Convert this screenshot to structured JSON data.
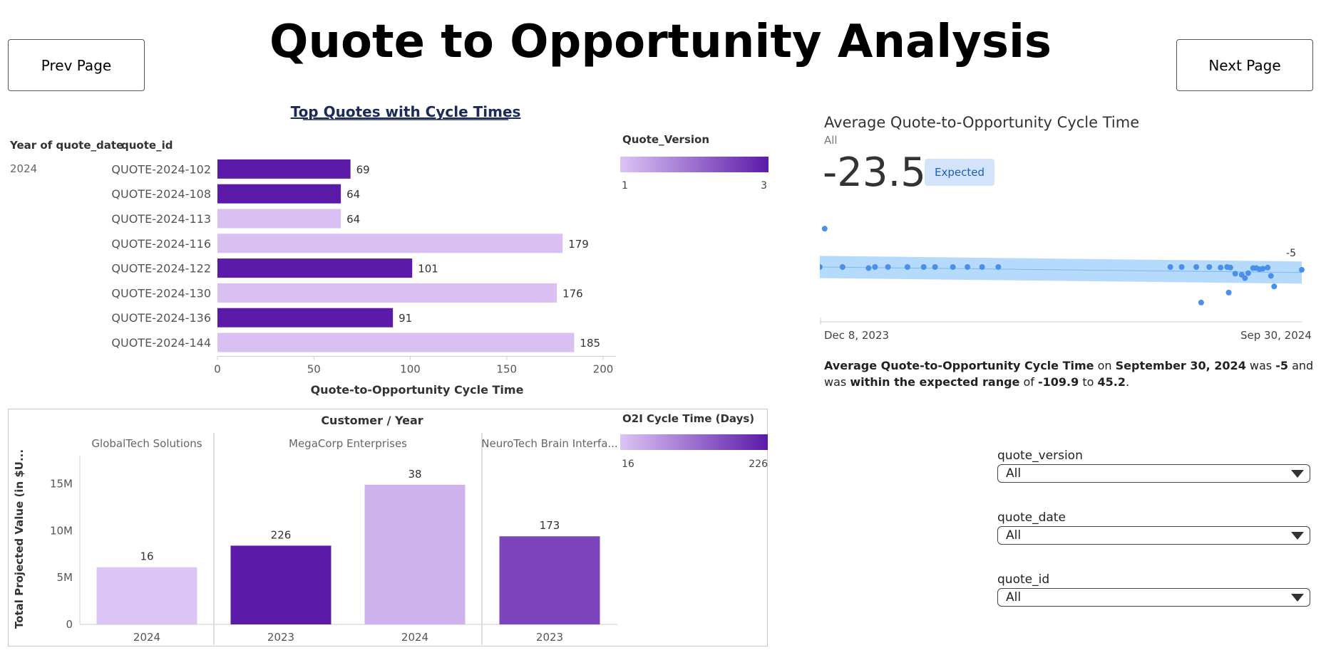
{
  "title": "Quote to Opportunity Analysis",
  "nav": {
    "prev_label": "Prev Page",
    "next_label": "Next Page"
  },
  "colors": {
    "dark_purple": "#5b1aa8",
    "mid_purple": "#7b45bb",
    "light_purple": "#d9bff2",
    "lavender": "#c7aae8",
    "kpi_blue": "#4a90e8",
    "band_blue": "#a9d4fb"
  },
  "top_quotes": {
    "title": "Top Quotes with Cycle Times",
    "col_year": "Year of quote_date",
    "col_id": "quote_id",
    "year_value": "2024",
    "legend_title": "Quote_Version",
    "legend_min": "1",
    "legend_max": "3"
  },
  "customer": {
    "title": "Customer / Year",
    "legend_title": "O2I Cycle Time (Days)",
    "legend_min": "16",
    "legend_max": "226"
  },
  "kpi": {
    "title": "Average Quote-to-Opportunity Cycle Time",
    "subtitle": "All",
    "value": "-23.5",
    "badge": "Expected",
    "last_label": "-5",
    "date_start": "Dec 8, 2023",
    "date_end": "Sep 30, 2024",
    "summary": {
      "measure": "Average Quote-to-Opportunity Cycle Time",
      "on": " on ",
      "date": "September 30, 2024",
      "was": " was ",
      "value": "-5",
      "and_was": " and was ",
      "range_text": "within the expected range",
      "of": " of ",
      "low": "-109.9",
      "to": " to ",
      "high": "45.2",
      "end": "."
    }
  },
  "slicers": [
    {
      "label": "quote_version",
      "value": "All"
    },
    {
      "label": "quote_date",
      "value": "All"
    },
    {
      "label": "quote_id",
      "value": "All"
    }
  ],
  "chart_data": [
    {
      "type": "bar",
      "orientation": "horizontal",
      "title": "Top Quotes with Cycle Times",
      "xlabel": "Quote-to-Opportunity Cycle Time",
      "ylabel": "quote_id",
      "xlim": [
        0,
        200
      ],
      "xticks": [
        "0",
        "50",
        "100",
        "150",
        "200"
      ],
      "categories": [
        "QUOTE-2024-102",
        "QUOTE-2024-108",
        "QUOTE-2024-113",
        "QUOTE-2024-116",
        "QUOTE-2024-122",
        "QUOTE-2024-130",
        "QUOTE-2024-136",
        "QUOTE-2024-144"
      ],
      "values": [
        69,
        64,
        64,
        179,
        101,
        176,
        91,
        185
      ],
      "color_values": [
        3,
        3,
        1,
        1,
        3,
        1,
        3,
        1
      ],
      "color_legend": "Quote_Version"
    },
    {
      "type": "bar",
      "title": "Customer / Year",
      "ylabel": "Total Projected Value (in $U...",
      "ylim": [
        0,
        18000000
      ],
      "yticks": [
        "0",
        "5M",
        "10M",
        "15M"
      ],
      "groups": [
        {
          "name": "GlobalTech Solutions",
          "bars": [
            {
              "x": "2024",
              "value": 6100000,
              "label": "16"
            }
          ]
        },
        {
          "name": "MegaCorp Enterprises",
          "bars": [
            {
              "x": "2023",
              "value": 8400000,
              "label": "226"
            },
            {
              "x": "2024",
              "value": 14900000,
              "label": "38"
            }
          ]
        },
        {
          "name": "NeuroTech Brain Interfa...",
          "bars": [
            {
              "x": "2023",
              "value": 9400000,
              "label": "173"
            }
          ]
        }
      ],
      "color_legend": "O2I Cycle Time (Days)"
    },
    {
      "type": "scatter",
      "title": "Average Quote-to-Opportunity Cycle Time",
      "xlim": [
        "2023-12-08",
        "2024-09-30"
      ],
      "ylim": [
        -140,
        140
      ],
      "expected_band": {
        "start": [
          -20,
          20
        ],
        "end": [
          -30,
          10
        ]
      },
      "points": [
        {
          "x": "2023-12-08",
          "y": 0
        },
        {
          "x": "2023-12-11",
          "y": 69
        },
        {
          "x": "2023-12-22",
          "y": 0
        },
        {
          "x": "2024-01-07",
          "y": -2
        },
        {
          "x": "2024-01-11",
          "y": 0
        },
        {
          "x": "2024-01-19",
          "y": 0
        },
        {
          "x": "2024-01-31",
          "y": 0
        },
        {
          "x": "2024-02-10",
          "y": 0
        },
        {
          "x": "2024-02-17",
          "y": 0
        },
        {
          "x": "2024-02-28",
          "y": 0
        },
        {
          "x": "2024-03-08",
          "y": 0
        },
        {
          "x": "2024-03-17",
          "y": 0
        },
        {
          "x": "2024-03-27",
          "y": 0
        },
        {
          "x": "2024-07-11",
          "y": 0
        },
        {
          "x": "2024-07-18",
          "y": 0
        },
        {
          "x": "2024-07-27",
          "y": 0
        },
        {
          "x": "2024-07-30",
          "y": -64
        },
        {
          "x": "2024-08-04",
          "y": 0
        },
        {
          "x": "2024-08-11",
          "y": -1
        },
        {
          "x": "2024-08-15",
          "y": 0
        },
        {
          "x": "2024-08-16",
          "y": -46
        },
        {
          "x": "2024-08-17",
          "y": -1
        },
        {
          "x": "2024-08-20",
          "y": -12
        },
        {
          "x": "2024-08-24",
          "y": -14
        },
        {
          "x": "2024-08-26",
          "y": -20
        },
        {
          "x": "2024-08-28",
          "y": -11
        },
        {
          "x": "2024-08-31",
          "y": -2
        },
        {
          "x": "2024-09-02",
          "y": -2
        },
        {
          "x": "2024-09-04",
          "y": -4
        },
        {
          "x": "2024-09-06",
          "y": -3
        },
        {
          "x": "2024-09-09",
          "y": -1
        },
        {
          "x": "2024-09-11",
          "y": -16
        },
        {
          "x": "2024-09-13",
          "y": -35
        },
        {
          "x": "2024-09-30",
          "y": -5
        }
      ]
    }
  ]
}
